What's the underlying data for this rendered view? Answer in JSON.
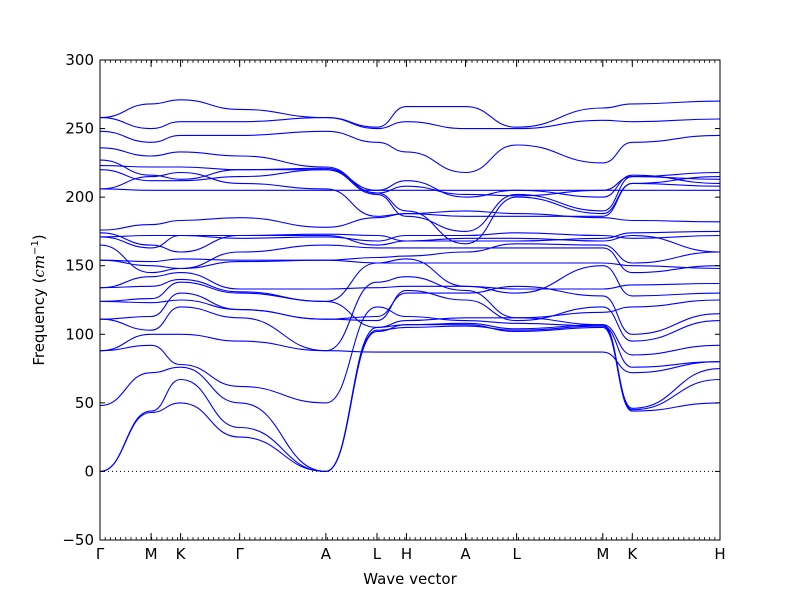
{
  "chart_data": {
    "type": "line",
    "title": "",
    "xlabel": "Wave vector",
    "ylabel": "Frequency (cm⁻¹)",
    "ylabel_text": "Frequency (",
    "ylabel_unit": "cm",
    "ylabel_exp": "−1",
    "ylabel_close": ")",
    "ylim": [
      -50,
      300
    ],
    "yticks": [
      -50,
      0,
      50,
      100,
      150,
      200,
      250,
      300
    ],
    "zero_line": true,
    "line_color": "#0000ff",
    "x_labels": [
      {
        "label": "Γ",
        "x": 0.0
      },
      {
        "label": "M",
        "x": 0.577
      },
      {
        "label": "K",
        "x": 0.91
      },
      {
        "label": "Γ",
        "x": 1.577
      },
      {
        "label": "A",
        "x": 2.55
      },
      {
        "label": "L",
        "x": 3.127
      },
      {
        "label": "H",
        "x": 3.46
      },
      {
        "label": "A",
        "x": 4.127
      },
      {
        "label": "L",
        "x": 4.704
      },
      {
        "label": "M",
        "x": 5.677
      },
      {
        "label": "K",
        "x": 6.01
      },
      {
        "label": "H",
        "x": 7.0
      }
    ],
    "xlim": [
      0,
      7.0
    ],
    "bands": [
      [
        0,
        43,
        50,
        25,
        0,
        105,
        107,
        107,
        102,
        105,
        44,
        50,
        108
      ],
      [
        0,
        44,
        67,
        32,
        0,
        103,
        105,
        106,
        103,
        106,
        45,
        67,
        110
      ],
      [
        48,
        72,
        76,
        50,
        0,
        102,
        107,
        108,
        104,
        107,
        46,
        75,
        112
      ],
      [
        88,
        92,
        78,
        62,
        50,
        120,
        113,
        110,
        108,
        106,
        76,
        80,
        117
      ],
      [
        88,
        100,
        100,
        95,
        88,
        87,
        87,
        87,
        87,
        87,
        72,
        80,
        87
      ],
      [
        111,
        103,
        120,
        112,
        88,
        138,
        142,
        132,
        112,
        107,
        85,
        92,
        120
      ],
      [
        111,
        113,
        130,
        118,
        111,
        110,
        132,
        125,
        110,
        120,
        95,
        110,
        130
      ],
      [
        124,
        123,
        125,
        118,
        111,
        113,
        130,
        130,
        135,
        128,
        100,
        115,
        132
      ],
      [
        124,
        126,
        138,
        130,
        124,
        105,
        110,
        112,
        112,
        116,
        120,
        125,
        140
      ],
      [
        134,
        135,
        140,
        131,
        124,
        152,
        155,
        135,
        130,
        150,
        128,
        130,
        150
      ],
      [
        134,
        142,
        145,
        133,
        133,
        134,
        135,
        135,
        133,
        133,
        136,
        137,
        132
      ],
      [
        154,
        150,
        148,
        153,
        154,
        152,
        152,
        152,
        152,
        152,
        150,
        148,
        155
      ],
      [
        154,
        153,
        155,
        154,
        154,
        156,
        157,
        160,
        166,
        165,
        152,
        160,
        160
      ],
      [
        165,
        145,
        148,
        160,
        165,
        163,
        163,
        163,
        163,
        163,
        145,
        150,
        160
      ],
      [
        171,
        163,
        172,
        172,
        172,
        165,
        168,
        170,
        170,
        168,
        172,
        160,
        168
      ],
      [
        171,
        172,
        172,
        170,
        171,
        168,
        172,
        172,
        174,
        172,
        170,
        172,
        165
      ],
      [
        174,
        165,
        160,
        172,
        173,
        172,
        168,
        168,
        168,
        170,
        174,
        175,
        162
      ],
      [
        176,
        180,
        183,
        185,
        178,
        185,
        188,
        190,
        188,
        185,
        183,
        182,
        170
      ],
      [
        206,
        205,
        205,
        205,
        205,
        205,
        205,
        205,
        205,
        205,
        205,
        205,
        202
      ],
      [
        206,
        215,
        218,
        210,
        206,
        186,
        188,
        186,
        186,
        186,
        210,
        208,
        200
      ],
      [
        220,
        212,
        212,
        215,
        220,
        202,
        186,
        175,
        202,
        190,
        215,
        218,
        196
      ],
      [
        223,
        222,
        222,
        220,
        220,
        205,
        212,
        200,
        205,
        200,
        216,
        210,
        205
      ],
      [
        227,
        216,
        213,
        220,
        221,
        203,
        208,
        202,
        201,
        205,
        215,
        213,
        210
      ],
      [
        236,
        230,
        233,
        230,
        222,
        203,
        190,
        166,
        200,
        188,
        210,
        215,
        207
      ],
      [
        248,
        240,
        245,
        245,
        248,
        240,
        233,
        218,
        238,
        225,
        240,
        245,
        240
      ],
      [
        258,
        250,
        255,
        255,
        258,
        250,
        255,
        250,
        250,
        256,
        255,
        257,
        258
      ],
      [
        258,
        268,
        271,
        264,
        258,
        251,
        266,
        266,
        251,
        265,
        268,
        270,
        266
      ]
    ]
  }
}
